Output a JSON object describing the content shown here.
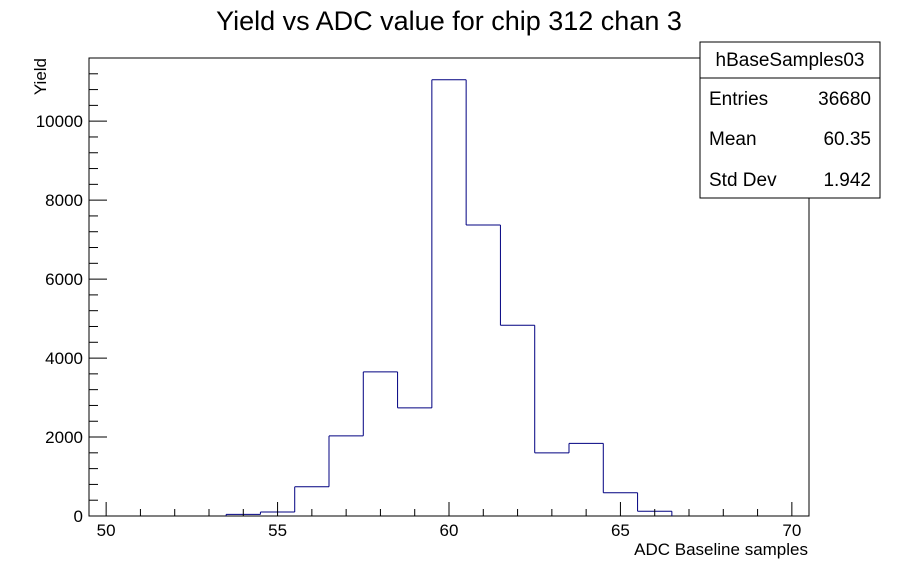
{
  "chart_data": {
    "type": "bar",
    "title": "Yield vs ADC value for chip 312 chan 3",
    "xlabel": "ADC Baseline samples",
    "ylabel": "Yield",
    "xlim": [
      49.5,
      70.5
    ],
    "ylim": [
      0,
      11600
    ],
    "x_ticks": [
      50,
      55,
      60,
      65,
      70
    ],
    "y_ticks": [
      0,
      2000,
      4000,
      6000,
      8000,
      10000
    ],
    "bin_edges": [
      49.5,
      50.5,
      51.5,
      52.5,
      53.5,
      54.5,
      55.5,
      56.5,
      57.5,
      58.5,
      59.5,
      60.5,
      61.5,
      62.5,
      63.5,
      64.5,
      65.5,
      66.5,
      67.5,
      68.5,
      69.5,
      70.5
    ],
    "values": [
      0,
      0,
      0,
      0,
      40,
      100,
      740,
      2030,
      3650,
      2740,
      11050,
      7370,
      4830,
      1600,
      1840,
      590,
      120,
      0,
      0,
      0,
      0
    ],
    "line_color": "#000080",
    "grid": false,
    "stats_box": {
      "name": "hBaseSamples03",
      "rows": [
        {
          "label": "Entries",
          "value": "36680"
        },
        {
          "label": "Mean",
          "value": "60.35"
        },
        {
          "label": "Std Dev",
          "value": "1.942"
        }
      ]
    }
  }
}
